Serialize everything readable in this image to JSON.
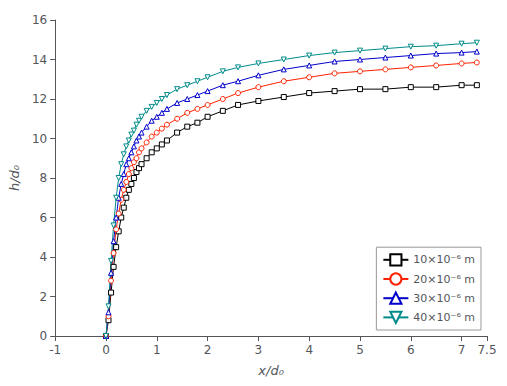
{
  "chart_data": {
    "type": "line",
    "xlabel": "x/d₀",
    "ylabel": "h/d₀",
    "xlim": [
      -1,
      7.5
    ],
    "ylim": [
      0,
      16
    ],
    "xticks": [
      -1,
      0,
      1,
      2,
      3,
      4,
      5,
      6,
      7
    ],
    "yticks": [
      0,
      2,
      4,
      6,
      8,
      10,
      12,
      14,
      16
    ],
    "grid": false,
    "legend": "lower right",
    "x": [
      0.0,
      0.05,
      0.1,
      0.15,
      0.2,
      0.25,
      0.3,
      0.35,
      0.4,
      0.45,
      0.5,
      0.55,
      0.6,
      0.65,
      0.7,
      0.8,
      0.9,
      1.0,
      1.1,
      1.2,
      1.4,
      1.6,
      1.8,
      2.0,
      2.3,
      2.6,
      3.0,
      3.5,
      4.0,
      4.5,
      5.0,
      5.5,
      6.0,
      6.5,
      7.0,
      7.3
    ],
    "series": [
      {
        "name": "10×10⁻⁶ m",
        "color": "#000000",
        "marker": "square",
        "values": [
          0.0,
          0.8,
          2.2,
          3.5,
          4.5,
          5.3,
          6.0,
          6.5,
          7.0,
          7.4,
          7.7,
          8.0,
          8.3,
          8.5,
          8.7,
          9.0,
          9.3,
          9.5,
          9.7,
          9.9,
          10.3,
          10.6,
          10.8,
          11.1,
          11.4,
          11.7,
          11.9,
          12.1,
          12.3,
          12.4,
          12.5,
          12.5,
          12.6,
          12.6,
          12.7,
          12.7
        ]
      },
      {
        "name": "20×10⁻⁶ m",
        "color": "#ff2200",
        "marker": "circle",
        "values": [
          0.0,
          1.0,
          2.8,
          4.2,
          5.4,
          6.2,
          6.9,
          7.4,
          7.8,
          8.2,
          8.5,
          8.8,
          9.0,
          9.3,
          9.5,
          9.8,
          10.1,
          10.3,
          10.5,
          10.7,
          11.0,
          11.3,
          11.5,
          11.7,
          12.0,
          12.3,
          12.6,
          12.9,
          13.1,
          13.3,
          13.4,
          13.5,
          13.6,
          13.7,
          13.8,
          13.85
        ]
      },
      {
        "name": "30×10⁻⁶ m",
        "color": "#0000cc",
        "marker": "triangle-up",
        "values": [
          0.0,
          1.2,
          3.2,
          4.8,
          6.0,
          7.0,
          7.7,
          8.2,
          8.7,
          9.0,
          9.3,
          9.6,
          9.9,
          10.1,
          10.3,
          10.6,
          10.9,
          11.1,
          11.3,
          11.5,
          11.8,
          12.0,
          12.2,
          12.4,
          12.7,
          12.9,
          13.2,
          13.5,
          13.7,
          13.9,
          14.0,
          14.1,
          14.2,
          14.3,
          14.35,
          14.4
        ]
      },
      {
        "name": "40×10⁻⁶ m",
        "color": "#008B8B",
        "marker": "triangle-down",
        "values": [
          0.0,
          1.5,
          3.8,
          5.6,
          7.0,
          8.0,
          8.7,
          9.2,
          9.6,
          9.9,
          10.2,
          10.4,
          10.7,
          10.9,
          11.1,
          11.4,
          11.6,
          11.8,
          12.0,
          12.2,
          12.5,
          12.7,
          12.9,
          13.1,
          13.4,
          13.6,
          13.8,
          14.0,
          14.2,
          14.35,
          14.45,
          14.55,
          14.65,
          14.7,
          14.8,
          14.85
        ]
      }
    ]
  }
}
